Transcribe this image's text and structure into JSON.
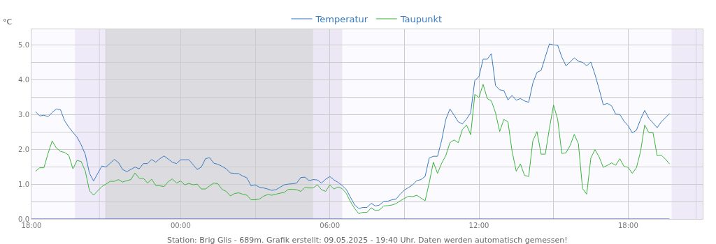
{
  "chart_data": {
    "type": "line",
    "ylabel": "°C",
    "legend": "top",
    "grid": true,
    "marker": "none",
    "line_style": "solid",
    "x": [
      "2025-05-08T18:10",
      "2025-05-08T18:20",
      "2025-05-08T18:30",
      "2025-05-08T18:40",
      "2025-05-08T18:50",
      "2025-05-08T19:00",
      "2025-05-08T19:10",
      "2025-05-08T19:20",
      "2025-05-08T19:30",
      "2025-05-08T19:40",
      "2025-05-08T19:50",
      "2025-05-08T20:00",
      "2025-05-08T20:10",
      "2025-05-08T20:20",
      "2025-05-08T20:30",
      "2025-05-08T20:40",
      "2025-05-08T20:50",
      "2025-05-08T21:00",
      "2025-05-08T21:10",
      "2025-05-08T21:20",
      "2025-05-08T21:30",
      "2025-05-08T21:40",
      "2025-05-08T21:50",
      "2025-05-08T22:00",
      "2025-05-08T22:10",
      "2025-05-08T22:20",
      "2025-05-08T22:30",
      "2025-05-08T22:40",
      "2025-05-08T22:50",
      "2025-05-08T23:00",
      "2025-05-08T23:10",
      "2025-05-08T23:20",
      "2025-05-08T23:30",
      "2025-05-08T23:40",
      "2025-05-08T23:50",
      "2025-05-09T00:00",
      "2025-05-09T00:10",
      "2025-05-09T00:20",
      "2025-05-09T00:30",
      "2025-05-09T00:40",
      "2025-05-09T00:50",
      "2025-05-09T01:00",
      "2025-05-09T01:10",
      "2025-05-09T01:20",
      "2025-05-09T01:30",
      "2025-05-09T01:40",
      "2025-05-09T01:50",
      "2025-05-09T02:00",
      "2025-05-09T02:10",
      "2025-05-09T02:20",
      "2025-05-09T02:30",
      "2025-05-09T02:40",
      "2025-05-09T02:50",
      "2025-05-09T03:00",
      "2025-05-09T03:10",
      "2025-05-09T03:20",
      "2025-05-09T03:30",
      "2025-05-09T03:40",
      "2025-05-09T03:50",
      "2025-05-09T04:00",
      "2025-05-09T04:10",
      "2025-05-09T04:20",
      "2025-05-09T04:30",
      "2025-05-09T04:40",
      "2025-05-09T04:50",
      "2025-05-09T05:00",
      "2025-05-09T05:10",
      "2025-05-09T05:20",
      "2025-05-09T05:30",
      "2025-05-09T05:40",
      "2025-05-09T05:50",
      "2025-05-09T06:00",
      "2025-05-09T06:10",
      "2025-05-09T06:20",
      "2025-05-09T06:30",
      "2025-05-09T06:40",
      "2025-05-09T06:50",
      "2025-05-09T07:00",
      "2025-05-09T07:10",
      "2025-05-09T07:20",
      "2025-05-09T07:30",
      "2025-05-09T07:40",
      "2025-05-09T07:50",
      "2025-05-09T08:00",
      "2025-05-09T08:10",
      "2025-05-09T08:20",
      "2025-05-09T08:30",
      "2025-05-09T08:40",
      "2025-05-09T08:50",
      "2025-05-09T09:00",
      "2025-05-09T09:10",
      "2025-05-09T09:20",
      "2025-05-09T09:30",
      "2025-05-09T09:40",
      "2025-05-09T09:50",
      "2025-05-09T10:00",
      "2025-05-09T10:10",
      "2025-05-09T10:20",
      "2025-05-09T10:30",
      "2025-05-09T10:40",
      "2025-05-09T10:50",
      "2025-05-09T11:00",
      "2025-05-09T11:10",
      "2025-05-09T11:20",
      "2025-05-09T11:30",
      "2025-05-09T11:40",
      "2025-05-09T11:50",
      "2025-05-09T12:00",
      "2025-05-09T12:10",
      "2025-05-09T12:20",
      "2025-05-09T12:30",
      "2025-05-09T12:40",
      "2025-05-09T12:50",
      "2025-05-09T13:00",
      "2025-05-09T13:10",
      "2025-05-09T13:20",
      "2025-05-09T13:30",
      "2025-05-09T13:40",
      "2025-05-09T13:50",
      "2025-05-09T14:00",
      "2025-05-09T14:10",
      "2025-05-09T14:20",
      "2025-05-09T14:30",
      "2025-05-09T14:40",
      "2025-05-09T14:50",
      "2025-05-09T15:00",
      "2025-05-09T15:10",
      "2025-05-09T15:20",
      "2025-05-09T15:30",
      "2025-05-09T15:40",
      "2025-05-09T15:50",
      "2025-05-09T16:00",
      "2025-05-09T16:10",
      "2025-05-09T16:20",
      "2025-05-09T16:30",
      "2025-05-09T16:40",
      "2025-05-09T16:50",
      "2025-05-09T17:00",
      "2025-05-09T17:10",
      "2025-05-09T17:20",
      "2025-05-09T17:30",
      "2025-05-09T17:40",
      "2025-05-09T17:50",
      "2025-05-09T18:00",
      "2025-05-09T18:10",
      "2025-05-09T18:20",
      "2025-05-09T18:30",
      "2025-05-09T18:40",
      "2025-05-09T18:50",
      "2025-05-09T19:00",
      "2025-05-09T19:10",
      "2025-05-09T19:20",
      "2025-05-09T19:30",
      "2025-05-09T19:40"
    ],
    "series": [
      {
        "name": "Temperatur",
        "color": "#3a7bbf",
        "values": [
          3.08,
          2.96,
          2.98,
          2.94,
          3.06,
          3.16,
          3.14,
          2.82,
          2.64,
          2.49,
          2.35,
          2.13,
          1.85,
          1.31,
          1.09,
          1.31,
          1.52,
          1.49,
          1.6,
          1.71,
          1.62,
          1.42,
          1.36,
          1.42,
          1.49,
          1.44,
          1.59,
          1.59,
          1.71,
          1.63,
          1.73,
          1.81,
          1.72,
          1.63,
          1.59,
          1.7,
          1.7,
          1.7,
          1.56,
          1.42,
          1.49,
          1.73,
          1.76,
          1.6,
          1.57,
          1.51,
          1.44,
          1.32,
          1.31,
          1.3,
          1.23,
          1.18,
          0.95,
          0.98,
          0.91,
          0.89,
          0.86,
          0.82,
          0.84,
          0.91,
          0.98,
          1.0,
          1.01,
          1.03,
          1.19,
          1.2,
          1.1,
          1.13,
          1.12,
          1.03,
          1.14,
          1.22,
          1.12,
          1.05,
          0.96,
          0.84,
          0.62,
          0.4,
          0.3,
          0.33,
          0.33,
          0.45,
          0.37,
          0.4,
          0.5,
          0.51,
          0.55,
          0.57,
          0.71,
          0.83,
          0.9,
          0.98,
          1.1,
          1.13,
          1.22,
          1.75,
          1.8,
          1.8,
          2.26,
          2.86,
          3.16,
          2.98,
          2.79,
          2.73,
          2.87,
          3.05,
          3.98,
          4.09,
          4.59,
          4.59,
          4.75,
          3.83,
          3.71,
          3.69,
          3.42,
          3.55,
          3.41,
          3.46,
          3.39,
          3.35,
          3.9,
          4.21,
          4.27,
          4.65,
          5.03,
          5.0,
          4.99,
          4.65,
          4.4,
          4.51,
          4.63,
          4.53,
          4.5,
          4.4,
          4.51,
          4.15,
          3.73,
          3.28,
          3.32,
          3.25,
          3.01,
          3.0,
          2.81,
          2.68,
          2.47,
          2.55,
          2.86,
          3.12,
          2.89,
          2.76,
          2.62,
          2.79,
          2.91,
          3.03
        ]
      },
      {
        "name": "Taupunkt",
        "color": "#3cb43c",
        "values": [
          1.37,
          1.47,
          1.47,
          1.88,
          2.24,
          2.04,
          1.94,
          1.91,
          1.83,
          1.44,
          1.68,
          1.65,
          1.37,
          0.81,
          0.68,
          0.81,
          0.93,
          1.0,
          1.08,
          1.08,
          1.13,
          1.06,
          1.1,
          1.13,
          1.32,
          1.17,
          1.17,
          1.03,
          1.14,
          0.96,
          0.95,
          0.93,
          1.07,
          1.15,
          1.03,
          1.09,
          0.98,
          1.02,
          0.98,
          1.0,
          0.86,
          0.86,
          0.95,
          1.03,
          1.01,
          0.85,
          0.79,
          0.66,
          0.73,
          0.75,
          0.71,
          0.68,
          0.55,
          0.55,
          0.57,
          0.65,
          0.7,
          0.68,
          0.71,
          0.74,
          0.76,
          0.85,
          0.85,
          0.84,
          0.79,
          0.9,
          0.89,
          0.89,
          0.98,
          0.84,
          0.79,
          0.98,
          0.86,
          0.92,
          0.87,
          0.73,
          0.49,
          0.3,
          0.15,
          0.19,
          0.19,
          0.32,
          0.24,
          0.26,
          0.37,
          0.38,
          0.4,
          0.44,
          0.52,
          0.59,
          0.65,
          0.64,
          0.68,
          0.6,
          0.52,
          1.04,
          1.63,
          1.31,
          1.6,
          1.82,
          2.19,
          2.27,
          2.19,
          2.57,
          2.7,
          2.42,
          3.58,
          3.49,
          3.87,
          3.46,
          3.39,
          3.05,
          2.51,
          2.86,
          2.79,
          1.94,
          1.37,
          1.58,
          1.25,
          1.22,
          2.24,
          2.51,
          1.86,
          1.86,
          2.6,
          3.27,
          2.86,
          1.88,
          1.9,
          2.11,
          2.43,
          2.16,
          0.87,
          0.71,
          1.75,
          1.99,
          1.78,
          1.48,
          1.54,
          1.61,
          1.54,
          1.73,
          1.51,
          1.48,
          1.31,
          1.47,
          1.94,
          2.7,
          2.48,
          2.48,
          1.82,
          1.83,
          1.72,
          1.58
        ]
      },
      {
        "color": "#3060e0",
        "x": [
          "2025-05-08T18:00",
          "2025-05-09T19:40"
        ],
        "values": [
          0,
          0
        ]
      }
    ],
    "xlim": [
      "2025-05-08T18:00",
      "2025-05-09T21:00"
    ],
    "xticks": [
      {
        "value": "2025-05-08T18:00",
        "label": "18:00"
      },
      {
        "value": "2025-05-08T21:00",
        "label": null
      },
      {
        "value": "2025-05-09T00:00",
        "label": "00:00"
      },
      {
        "value": "2025-05-09T03:00",
        "label": null
      },
      {
        "value": "2025-05-09T06:00",
        "label": "06:00"
      },
      {
        "value": "2025-05-09T09:00",
        "label": null
      },
      {
        "value": "2025-05-09T12:00",
        "label": "12:00"
      },
      {
        "value": "2025-05-09T15:00",
        "label": null
      },
      {
        "value": "2025-05-09T18:00",
        "label": "18:00"
      },
      {
        "value": "2025-05-09T21:00",
        "label": null
      }
    ],
    "ylim": [
      0,
      5.45
    ],
    "yticks": [
      {
        "value": 0,
        "label": "0.0"
      },
      {
        "value": 0.5,
        "label": null
      },
      {
        "value": 1,
        "label": "1.0"
      },
      {
        "value": 1.5,
        "label": null
      },
      {
        "value": 2,
        "label": "2.0"
      },
      {
        "value": 2.5,
        "label": null
      },
      {
        "value": 3,
        "label": "3.0"
      },
      {
        "value": 3.5,
        "label": null
      },
      {
        "value": 4,
        "label": "4.0"
      },
      {
        "value": 4.5,
        "label": null
      },
      {
        "value": 5,
        "label": "5.0"
      }
    ],
    "bands": [
      {
        "axis": "x",
        "from": "2025-05-08T19:45",
        "to": "2025-05-08T21:00",
        "color": "#efeaf8"
      },
      {
        "axis": "x",
        "from": "2025-05-08T21:00",
        "to": "2025-05-09T05:20",
        "color": "#dcdce0"
      },
      {
        "axis": "x",
        "from": "2025-05-09T05:20",
        "to": "2025-05-09T06:30",
        "color": "#ebe7f4"
      },
      {
        "axis": "x",
        "from": "2025-05-09T19:45",
        "to": "2025-05-09T21:00",
        "color": "#efeaf8"
      }
    ],
    "ref_lines": [
      {
        "axis": "x",
        "value": "2025-05-08T20:44",
        "color": "#d4cfdc"
      },
      {
        "axis": "x",
        "value": "2025-05-09T20:44",
        "color": "#d4cfdc"
      }
    ],
    "annotations": [
      "Station: Brig Glis - 689m. Grafik erstellt: 09.05.2025 - 19:40 Uhr. Daten werden automatisch gemessen!"
    ]
  }
}
